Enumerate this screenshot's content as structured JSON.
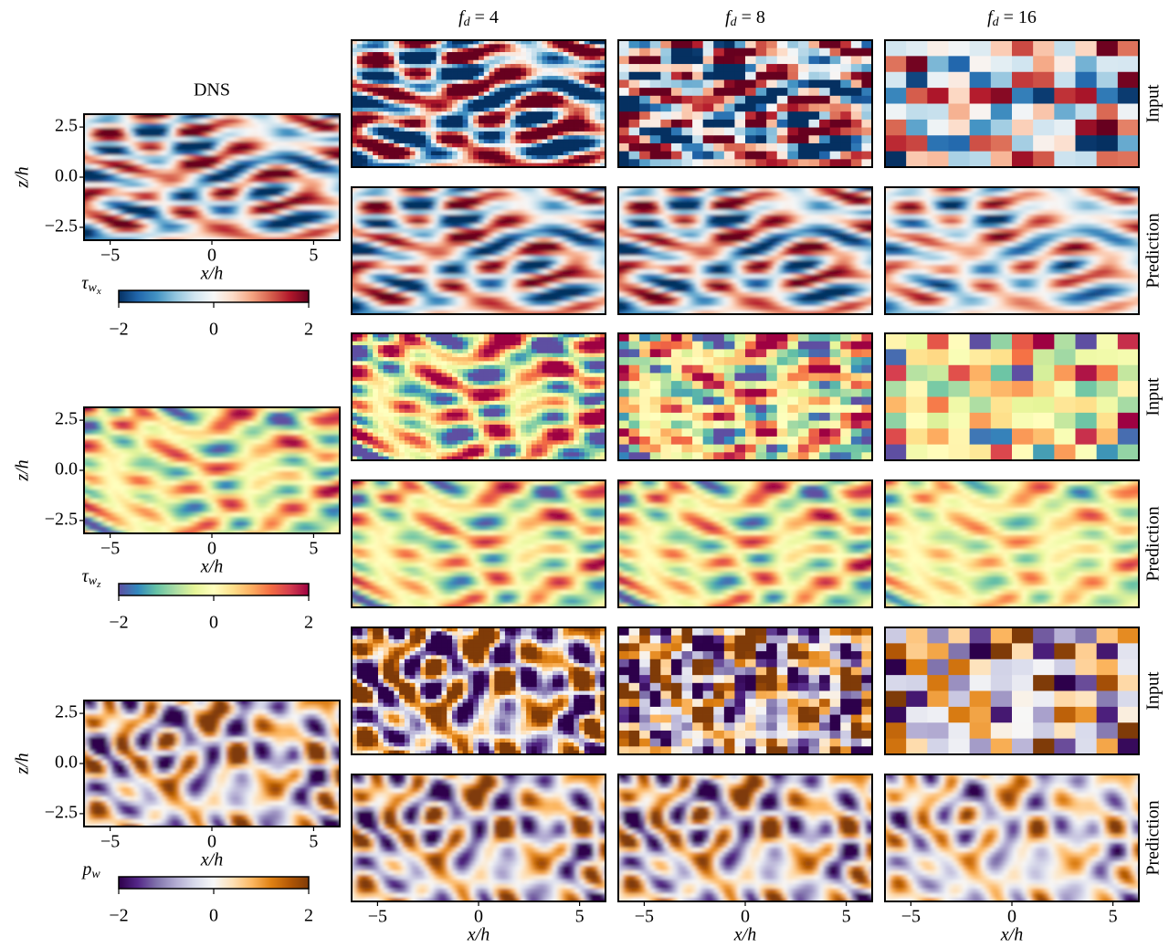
{
  "columns": [
    {
      "base": "f",
      "sub": "d",
      "tail": " = 4"
    },
    {
      "base": "f",
      "sub": "d",
      "tail": " = 8"
    },
    {
      "base": "f",
      "sub": "d",
      "tail": " = 16"
    }
  ],
  "downsampling": [
    4,
    8,
    16
  ],
  "dns_title": "DNS",
  "row_labels": [
    "Input",
    "Prediction",
    "Input",
    "Prediction",
    "Input",
    "Prediction"
  ],
  "axes": {
    "xlabel": "x/h",
    "ylabel": "z/h",
    "xlim": [
      -6.2832,
      6.2832
    ],
    "ylim": [
      -3.1416,
      3.1416
    ],
    "xticks": [
      {
        "value": -5,
        "label": "−5"
      },
      0,
      5
    ],
    "yticks": [
      {
        "value": -2.5,
        "label": "−2.5"
      },
      {
        "value": 0,
        "label": "0.0"
      },
      2.5
    ]
  },
  "fields": [
    {
      "colorbar_label": {
        "base": "τ",
        "sub": "w",
        "subsub": "x"
      },
      "clim": [
        -2,
        2
      ],
      "cticks": [
        {
          "value": -2,
          "label": "−2"
        },
        0,
        2
      ],
      "colormap": [
        "#053061",
        "#2166ac",
        "#4393c3",
        "#92c5de",
        "#d1e5f0",
        "#f7f7f7",
        "#fddbc7",
        "#f4a582",
        "#d6604d",
        "#b2182b",
        "#67001f"
      ]
    },
    {
      "colorbar_label": {
        "base": "τ",
        "sub": "w",
        "subsub": "z"
      },
      "clim": [
        -2,
        2
      ],
      "cticks": [
        {
          "value": -2,
          "label": "−2"
        },
        0,
        2
      ],
      "colormap": [
        "#5e4fa2",
        "#3288bd",
        "#66c2a5",
        "#abdda4",
        "#e6f598",
        "#ffffbf",
        "#fee08b",
        "#fdae61",
        "#f46d43",
        "#d53e4f",
        "#9e0142"
      ]
    },
    {
      "colorbar_label": {
        "base": "p",
        "sub": "w",
        "subsub": ""
      },
      "clim": [
        -2,
        2
      ],
      "cticks": [
        {
          "value": -2,
          "label": "−2"
        },
        0,
        2
      ],
      "colormap": [
        "#2d004b",
        "#542788",
        "#8073ac",
        "#b2abd2",
        "#d8daeb",
        "#f7f7f7",
        "#fee0b6",
        "#fdb863",
        "#e08214",
        "#b35806",
        "#7f3b08"
      ]
    }
  ]
}
